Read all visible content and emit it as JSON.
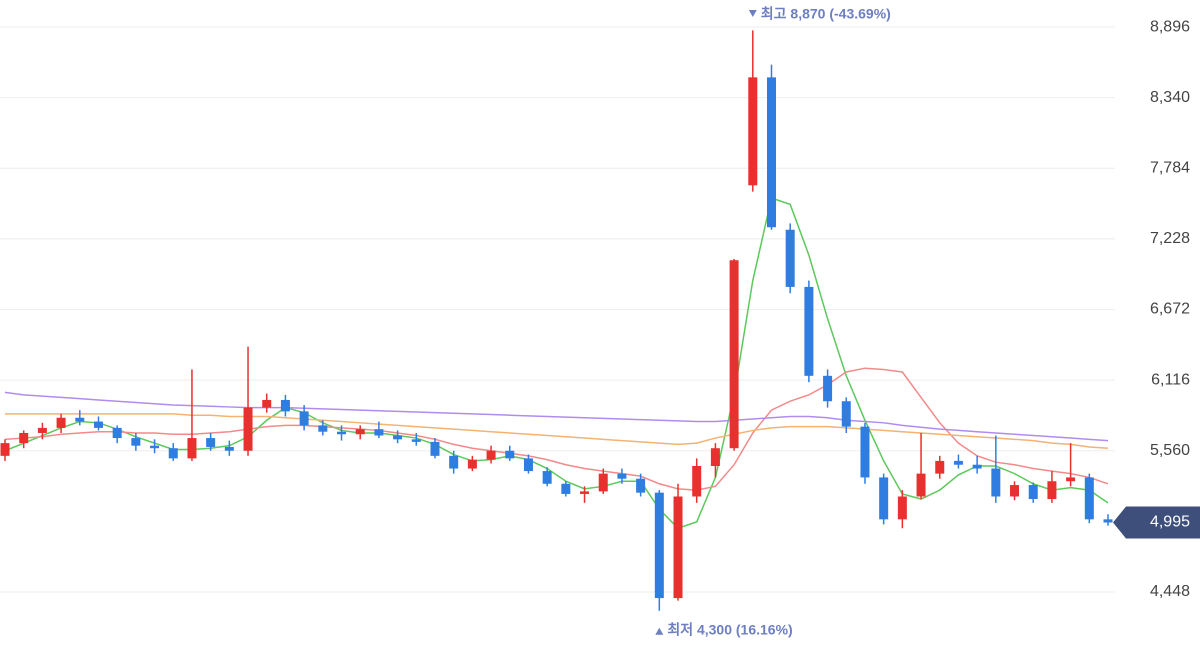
{
  "chart_data": {
    "type": "candlestick",
    "open": [
      5520,
      5620,
      5700,
      5740,
      5820,
      5790,
      5740,
      5660,
      5600,
      5580,
      5500,
      5660,
      5590,
      5560,
      5900,
      5960,
      5870,
      5760,
      5710,
      5690,
      5730,
      5680,
      5650,
      5630,
      5520,
      5420,
      5490,
      5560,
      5500,
      5400,
      5300,
      5220,
      5240,
      5380,
      5340,
      5230,
      4400,
      5200,
      5440,
      5580,
      7650,
      8500,
      7300,
      6850,
      6150,
      5950,
      5750,
      5350,
      5020,
      5200,
      5380,
      5480,
      5450,
      5420,
      5200,
      5290,
      5180,
      5320,
      5350,
      5020
    ],
    "high": [
      5650,
      5720,
      5780,
      5850,
      5880,
      5830,
      5760,
      5700,
      5650,
      5620,
      6200,
      5700,
      5640,
      6380,
      6010,
      6000,
      5920,
      5800,
      5760,
      5760,
      5790,
      5720,
      5700,
      5660,
      5560,
      5520,
      5600,
      5600,
      5530,
      5430,
      5320,
      5280,
      5420,
      5420,
      5380,
      5250,
      5300,
      5500,
      5620,
      7070,
      8870,
      8600,
      7350,
      6900,
      6200,
      5980,
      5780,
      5380,
      5250,
      5700,
      5520,
      5530,
      5520,
      5680,
      5320,
      5310,
      5400,
      5620,
      5380,
      5060
    ],
    "low": [
      5480,
      5580,
      5650,
      5700,
      5760,
      5720,
      5620,
      5560,
      5540,
      5480,
      5480,
      5560,
      5520,
      5520,
      5860,
      5830,
      5720,
      5680,
      5640,
      5650,
      5660,
      5620,
      5600,
      5500,
      5380,
      5400,
      5460,
      5480,
      5380,
      5280,
      5200,
      5150,
      5220,
      5300,
      5200,
      4300,
      4380,
      5150,
      5350,
      5560,
      7600,
      7300,
      6800,
      6100,
      5900,
      5700,
      5300,
      4980,
      4950,
      5180,
      5340,
      5420,
      5380,
      5150,
      5170,
      5150,
      5150,
      5280,
      4990,
      4970
    ],
    "close": [
      5620,
      5700,
      5740,
      5820,
      5790,
      5740,
      5660,
      5600,
      5580,
      5500,
      5660,
      5590,
      5560,
      5900,
      5960,
      5870,
      5760,
      5710,
      5690,
      5730,
      5680,
      5650,
      5630,
      5520,
      5420,
      5490,
      5560,
      5500,
      5400,
      5300,
      5220,
      5240,
      5380,
      5340,
      5230,
      4400,
      5200,
      5440,
      5580,
      7060,
      8500,
      7320,
      6850,
      6150,
      5950,
      5750,
      5350,
      5020,
      5200,
      5380,
      5480,
      5450,
      5420,
      5200,
      5290,
      5180,
      5320,
      5350,
      5020,
      4995
    ],
    "up_color": "#e8302e",
    "down_color": "#2f7de1",
    "series": [
      {
        "color": "#5cc95c",
        "values": [
          5560,
          5620,
          5680,
          5740,
          5790,
          5780,
          5730,
          5670,
          5620,
          5570,
          5570,
          5580,
          5600,
          5670,
          5800,
          5900,
          5860,
          5780,
          5720,
          5700,
          5700,
          5680,
          5660,
          5610,
          5530,
          5480,
          5490,
          5520,
          5490,
          5420,
          5320,
          5260,
          5280,
          5320,
          5320,
          5100,
          4950,
          5000,
          5350,
          6000,
          6900,
          7550,
          7500,
          7100,
          6600,
          6150,
          5800,
          5480,
          5220,
          5180,
          5250,
          5370,
          5440,
          5440,
          5380,
          5300,
          5250,
          5270,
          5250,
          5150
        ]
      },
      {
        "color": "#f28a8a",
        "values": [
          5650,
          5660,
          5670,
          5690,
          5700,
          5710,
          5710,
          5700,
          5700,
          5690,
          5690,
          5700,
          5710,
          5730,
          5750,
          5760,
          5760,
          5750,
          5740,
          5730,
          5720,
          5700,
          5680,
          5650,
          5610,
          5580,
          5560,
          5540,
          5520,
          5490,
          5450,
          5420,
          5400,
          5380,
          5360,
          5300,
          5260,
          5250,
          5280,
          5450,
          5700,
          5880,
          5950,
          6000,
          6080,
          6180,
          6210,
          6200,
          6180,
          5980,
          5780,
          5620,
          5520,
          5470,
          5450,
          5420,
          5400,
          5380,
          5350,
          5300
        ]
      },
      {
        "color": "#f5b271",
        "values": [
          5850,
          5850,
          5850,
          5850,
          5850,
          5850,
          5850,
          5850,
          5850,
          5850,
          5840,
          5840,
          5830,
          5830,
          5830,
          5820,
          5810,
          5800,
          5790,
          5780,
          5770,
          5760,
          5750,
          5740,
          5730,
          5720,
          5710,
          5700,
          5690,
          5680,
          5670,
          5660,
          5650,
          5640,
          5630,
          5620,
          5610,
          5620,
          5660,
          5690,
          5720,
          5740,
          5750,
          5750,
          5750,
          5740,
          5730,
          5720,
          5710,
          5700,
          5690,
          5680,
          5670,
          5660,
          5650,
          5640,
          5620,
          5610,
          5590,
          5580
        ]
      },
      {
        "color": "#b18cf0",
        "values": [
          6020,
          6000,
          5990,
          5980,
          5970,
          5960,
          5950,
          5940,
          5930,
          5920,
          5915,
          5910,
          5905,
          5900,
          5900,
          5900,
          5895,
          5890,
          5885,
          5880,
          5875,
          5870,
          5865,
          5860,
          5855,
          5850,
          5845,
          5840,
          5835,
          5830,
          5825,
          5820,
          5815,
          5810,
          5805,
          5800,
          5795,
          5790,
          5790,
          5800,
          5810,
          5820,
          5830,
          5830,
          5820,
          5800,
          5790,
          5780,
          5760,
          5745,
          5730,
          5720,
          5710,
          5700,
          5690,
          5680,
          5670,
          5660,
          5650,
          5640
        ]
      }
    ],
    "ylim": [
      4070,
      9109
    ],
    "yticks": [
      {
        "value": 4448,
        "label": "4,448"
      },
      {
        "value": 5560,
        "label": "5,560"
      },
      {
        "value": 6116,
        "label": "6,116"
      },
      {
        "value": 6672,
        "label": "6,672"
      },
      {
        "value": 7228,
        "label": "7,228"
      },
      {
        "value": 7784,
        "label": "7,784"
      },
      {
        "value": 8340,
        "label": "8,340"
      },
      {
        "value": 8896,
        "label": "8,896"
      }
    ],
    "grid": true,
    "high_annotation": "최고 8,870 (-43.69%)",
    "low_annotation": "최저 4,300 (16.16%)",
    "last_price": {
      "value": 4995,
      "label": "4,995"
    }
  }
}
